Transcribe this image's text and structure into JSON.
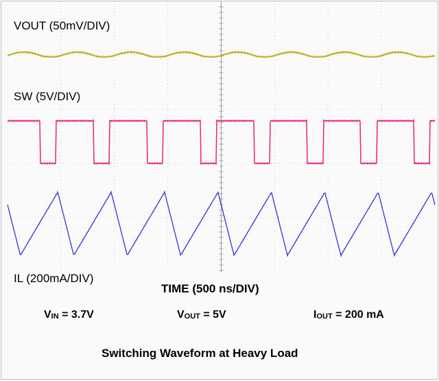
{
  "chart_data": {
    "type": "line",
    "title": "Switching Waveform at Heavy Load",
    "xlabel": "TIME (500 ns/DIV)",
    "grid": true,
    "x_divisions": 8,
    "x_unit": "ns",
    "x_range": [
      0,
      4000
    ],
    "switching_period_ns": 500,
    "series": [
      {
        "name": "VOUT (50mV/DIV)",
        "color": "#b5b01e",
        "shape": "ripple",
        "peak_to_peak_mV": 25
      },
      {
        "name": "SW (5V/DIV)",
        "color": "#e8227a",
        "shape": "square",
        "low_V": 0,
        "high_V": 5,
        "high_fraction": 0.7
      },
      {
        "name": "IL (200mA/DIV)",
        "color": "#2f35d6",
        "shape": "triangle",
        "peak_to_peak_mA": 400,
        "rise_fraction": 0.7
      }
    ]
  },
  "conditions": {
    "vin": {
      "sym": "V",
      "sub": "IN",
      "val": " = 3.7V"
    },
    "vout": {
      "sym": "V",
      "sub": "OUT",
      "val": " = 5V"
    },
    "iout": {
      "sym": "I",
      "sub": "OUT",
      "val": " = 200 mA"
    }
  },
  "caption": "Switching Waveform at Heavy Load"
}
